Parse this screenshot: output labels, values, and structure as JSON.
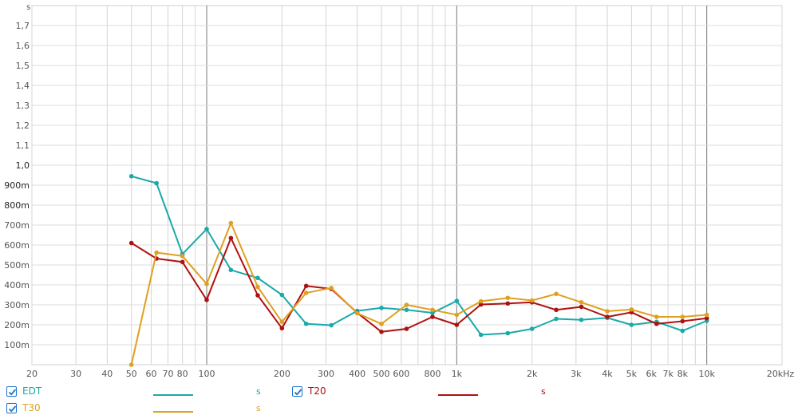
{
  "chart_data": {
    "type": "line",
    "ylabel": "s",
    "x_scale": "log",
    "xlim": [
      20,
      20000
    ],
    "ylim": [
      0,
      1.8
    ],
    "x_ticks": [
      {
        "v": 20,
        "label": "20"
      },
      {
        "v": 30,
        "label": "30"
      },
      {
        "v": 40,
        "label": "40"
      },
      {
        "v": 50,
        "label": "50"
      },
      {
        "v": 60,
        "label": "60"
      },
      {
        "v": 70,
        "label": "70"
      },
      {
        "v": 80,
        "label": "80"
      },
      {
        "v": 100,
        "label": "100"
      },
      {
        "v": 200,
        "label": "200"
      },
      {
        "v": 300,
        "label": "300"
      },
      {
        "v": 400,
        "label": "400"
      },
      {
        "v": 500,
        "label": "500"
      },
      {
        "v": 600,
        "label": "600"
      },
      {
        "v": 800,
        "label": "800"
      },
      {
        "v": 1000,
        "label": "1k"
      },
      {
        "v": 2000,
        "label": "2k"
      },
      {
        "v": 3000,
        "label": "3k"
      },
      {
        "v": 4000,
        "label": "4k"
      },
      {
        "v": 5000,
        "label": "5k"
      },
      {
        "v": 6000,
        "label": "6k"
      },
      {
        "v": 7000,
        "label": "7k"
      },
      {
        "v": 8000,
        "label": "8k"
      },
      {
        "v": 10000,
        "label": "10k"
      },
      {
        "v": 20000,
        "label": "20kHz"
      }
    ],
    "y_ticks": [
      {
        "v": 0.1,
        "label": "100m"
      },
      {
        "v": 0.2,
        "label": "200m"
      },
      {
        "v": 0.3,
        "label": "300m"
      },
      {
        "v": 0.4,
        "label": "400m"
      },
      {
        "v": 0.5,
        "label": "500m"
      },
      {
        "v": 0.6,
        "label": "600m"
      },
      {
        "v": 0.7,
        "label": "700m"
      },
      {
        "v": 0.8,
        "label": "800m"
      },
      {
        "v": 0.9,
        "label": "900m"
      },
      {
        "v": 1.0,
        "label": "1,0"
      },
      {
        "v": 1.1,
        "label": "1,1"
      },
      {
        "v": 1.2,
        "label": "1,2"
      },
      {
        "v": 1.3,
        "label": "1,3"
      },
      {
        "v": 1.4,
        "label": "1,4"
      },
      {
        "v": 1.5,
        "label": "1,5"
      },
      {
        "v": 1.6,
        "label": "1,6"
      },
      {
        "v": 1.7,
        "label": "1,7"
      }
    ],
    "x": [
      50,
      63,
      80,
      100,
      125,
      160,
      200,
      250,
      315,
      400,
      500,
      630,
      800,
      1000,
      1250,
      1600,
      2000,
      2500,
      3150,
      4000,
      5000,
      6300,
      8000,
      10000
    ],
    "series": [
      {
        "name": "EDT",
        "color": "#1aa9a9",
        "values": [
          0.945,
          0.91,
          0.555,
          0.68,
          0.475,
          0.435,
          0.35,
          0.205,
          0.198,
          0.27,
          0.285,
          0.275,
          0.26,
          0.32,
          0.15,
          0.158,
          0.18,
          0.23,
          0.225,
          0.235,
          0.2,
          0.215,
          0.17,
          0.22
        ]
      },
      {
        "name": "T20",
        "color": "#b01010",
        "values": [
          0.61,
          0.532,
          0.515,
          0.325,
          0.635,
          0.348,
          0.183,
          0.395,
          0.38,
          0.26,
          0.165,
          0.18,
          0.24,
          0.2,
          0.302,
          0.307,
          0.313,
          0.275,
          0.29,
          0.24,
          0.263,
          0.205,
          0.218,
          0.233
        ]
      },
      {
        "name": "T30",
        "color": "#e0a020",
        "values": [
          0.0,
          0.562,
          0.545,
          0.405,
          0.71,
          0.39,
          0.215,
          0.36,
          0.385,
          0.258,
          0.205,
          0.3,
          0.275,
          0.25,
          0.318,
          0.335,
          0.322,
          0.355,
          0.313,
          0.268,
          0.277,
          0.24,
          0.24,
          0.25
        ]
      }
    ]
  },
  "legend": [
    {
      "name": "EDT",
      "unit": "s",
      "checked": true,
      "color": "#1aa9a9"
    },
    {
      "name": "T20",
      "unit": "s",
      "checked": true,
      "color": "#b01010"
    },
    {
      "name": "T30",
      "unit": "s",
      "checked": true,
      "color": "#e0a020"
    }
  ]
}
